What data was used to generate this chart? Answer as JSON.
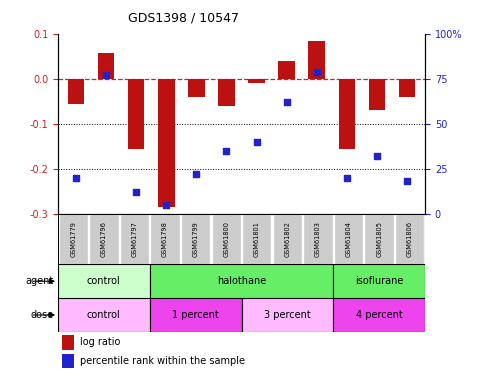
{
  "title": "GDS1398 / 10547",
  "samples": [
    "GSM61779",
    "GSM61796",
    "GSM61797",
    "GSM61798",
    "GSM61799",
    "GSM61800",
    "GSM61801",
    "GSM61802",
    "GSM61803",
    "GSM61804",
    "GSM61805",
    "GSM61806"
  ],
  "log_ratio": [
    -0.055,
    0.058,
    -0.155,
    -0.285,
    -0.04,
    -0.06,
    -0.01,
    0.04,
    0.085,
    -0.155,
    -0.07,
    -0.04
  ],
  "percentile_rank": [
    20,
    77,
    12,
    5,
    22,
    35,
    40,
    62,
    79,
    20,
    32,
    18
  ],
  "ylim_left": [
    -0.3,
    0.1
  ],
  "ylim_right": [
    0,
    100
  ],
  "bar_color": "#bb1111",
  "dot_color": "#2222cc",
  "left_yticks": [
    0.1,
    0.0,
    -0.1,
    -0.2,
    -0.3
  ],
  "right_yticks": [
    100,
    75,
    50,
    25,
    0
  ],
  "agent_groups": [
    {
      "label": "control",
      "start": 0,
      "end": 3,
      "color": "#ccffcc"
    },
    {
      "label": "halothane",
      "start": 3,
      "end": 9,
      "color": "#66ee66"
    },
    {
      "label": "isoflurane",
      "start": 9,
      "end": 12,
      "color": "#66ee66"
    }
  ],
  "dose_groups": [
    {
      "label": "control",
      "start": 0,
      "end": 3,
      "color": "#ffbbff"
    },
    {
      "label": "1 percent",
      "start": 3,
      "end": 6,
      "color": "#ee44ee"
    },
    {
      "label": "3 percent",
      "start": 6,
      "end": 9,
      "color": "#ffbbff"
    },
    {
      "label": "4 percent",
      "start": 9,
      "end": 12,
      "color": "#ee44ee"
    }
  ],
  "legend_bar_label": "log ratio",
  "legend_dot_label": "percentile rank within the sample",
  "bar_width": 0.55,
  "sample_bg": "#cccccc",
  "bg_color": "#ffffff"
}
